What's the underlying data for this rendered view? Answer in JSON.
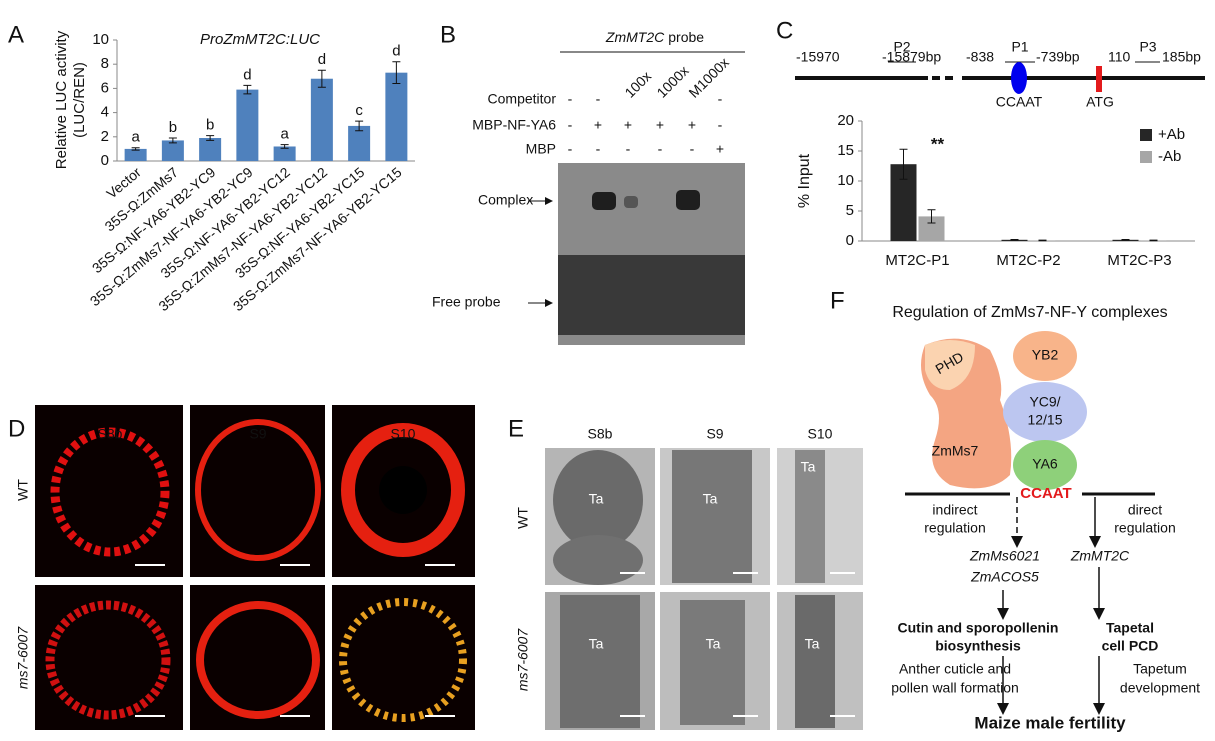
{
  "panels": [
    "A",
    "B",
    "C",
    "D",
    "E",
    "F"
  ],
  "chart_data": [
    {
      "type": "bar",
      "title": "ProZmMT2C:LUC",
      "y_label": [
        "Relative LUC activity",
        "(LUC/REN)"
      ],
      "categories": [
        "Vector",
        "35S-Ω:ZmMs7",
        "35S-Ω:NF-YA6-YB2-YC9",
        "35S-Ω:ZmMs7-NF-YA6-YB2-YC9",
        "35S-Ω:NF-YA6-YB2-YC12",
        "35S-Ω:ZmMs7-NF-YA6-YB2-YC12",
        "35S-Ω:NF-YA6-YB2-YC15",
        "35S-Ω:ZmMs7-NF-YA6-YB2-YC15"
      ],
      "values": [
        1.0,
        1.7,
        1.9,
        5.9,
        1.2,
        6.8,
        2.9,
        7.3
      ],
      "errors": [
        0.1,
        0.2,
        0.2,
        0.35,
        0.15,
        0.7,
        0.4,
        0.9
      ],
      "annotations": [
        "a",
        "b",
        "b",
        "d",
        "a",
        "d",
        "c",
        "d"
      ],
      "color": "#4f81bd",
      "ylim": [
        0,
        10
      ],
      "yticks": [
        0,
        2,
        4,
        6,
        8,
        10
      ]
    },
    {
      "type": "grouped-bar",
      "y_label": "% Input",
      "categories": [
        "MT2C-P1",
        "MT2C-P2",
        "MT2C-P3"
      ],
      "series": [
        {
          "name": "+Ab",
          "color": "#262626",
          "values": [
            12.8,
            0.2,
            0.2
          ],
          "errors": [
            2.5,
            0.05,
            0.05
          ]
        },
        {
          "name": "-Ab",
          "color": "#a6a6a6",
          "values": [
            4.1,
            0.1,
            0.1
          ],
          "errors": [
            1.1,
            0.05,
            0.05
          ]
        }
      ],
      "annotation": "**",
      "legend": "upper right",
      "ylim": [
        0,
        20
      ],
      "yticks": [
        0,
        5,
        10,
        15,
        20
      ]
    }
  ],
  "gel": {
    "header_gene": "ZmMT2C",
    "header_word": "probe",
    "rows": [
      {
        "label": "Competitor",
        "cells": [
          "-",
          "-",
          "100x",
          "1000x",
          "M1000x",
          "-"
        ]
      },
      {
        "label": "MBP-NF-YA6",
        "cells": [
          "-",
          "+",
          "+",
          "+",
          "+",
          "-"
        ]
      },
      {
        "label": "MBP",
        "cells": [
          "-",
          "-",
          "-",
          "-",
          "-",
          "+"
        ]
      }
    ],
    "bands": [
      "Complex",
      "Free probe"
    ]
  },
  "promoter_map": {
    "positions": [
      "-15970",
      "P2",
      "-15879bp",
      "-838",
      "P1",
      "-739bp",
      "110",
      "P3",
      "185bp"
    ],
    "elements": [
      "CCAAT",
      "ATG"
    ]
  },
  "staining": {
    "columns": [
      "S8b",
      "S9",
      "S10"
    ],
    "rows": [
      "WT",
      "ms7-6007"
    ]
  },
  "sections": {
    "columns": [
      "S8b",
      "S9",
      "S10"
    ],
    "rows": [
      "WT",
      "ms7-6007"
    ],
    "cell_label": "Ta"
  },
  "model": {
    "title": "Regulation of ZmMs7-NF-Y complexes",
    "proteins": [
      "PHD",
      "ZmMs7",
      "YB2",
      "YA6"
    ],
    "yc": [
      "YC9/",
      "12/15"
    ],
    "element": "CCAAT",
    "indirect": [
      "indirect",
      "regulation"
    ],
    "direct": [
      "direct",
      "regulation"
    ],
    "indirect_targets": [
      "ZmMs6021",
      "ZmACOS5"
    ],
    "direct_target": "ZmMT2C",
    "process_left": [
      "Cutin and sporopollenin",
      "biosynthesis"
    ],
    "process_right": [
      "Tapetal",
      "cell PCD"
    ],
    "outcome_left": [
      "Anther cuticle and",
      "pollen wall formation"
    ],
    "outcome_right": [
      "Tapetum",
      "development"
    ],
    "final": "Maize male fertility"
  }
}
